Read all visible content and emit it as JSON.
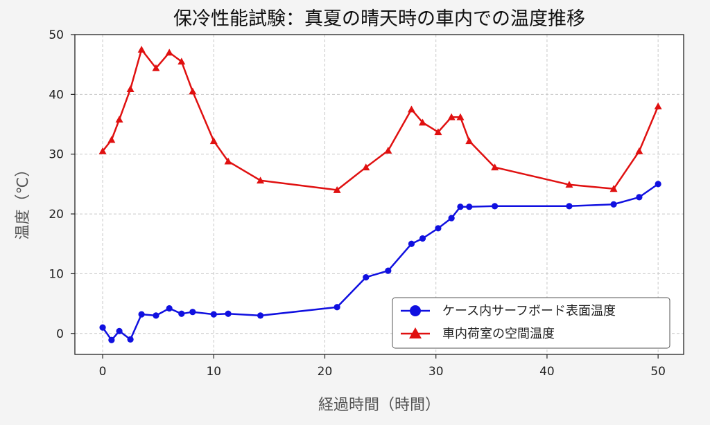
{
  "chart_data": {
    "type": "line",
    "title": "保冷性能試験：真夏の晴天時の車内での温度推移",
    "xlabel": "経過時間（時間）",
    "ylabel": "温度（℃）",
    "xlim": [
      -2.5,
      52.3
    ],
    "ylim": [
      -3.5,
      50
    ],
    "xticks": [
      0,
      10,
      20,
      30,
      40,
      50
    ],
    "yticks": [
      0,
      10,
      20,
      30,
      40,
      50
    ],
    "grid": true,
    "legend_position": "lower-right",
    "series": [
      {
        "name": "ケース内サーフボード表面温度",
        "color": "#1010e0",
        "marker": "circle",
        "x": [
          0,
          0.8,
          1.5,
          2.5,
          3.5,
          4.8,
          6,
          7.1,
          8.1,
          10,
          11.3,
          14.2,
          21.1,
          23.7,
          25.7,
          27.8,
          28.8,
          30.2,
          31.4,
          32.2,
          33,
          35.3,
          42,
          46,
          48.3,
          50
        ],
        "y": [
          1,
          -1.1,
          0.4,
          -1,
          3.2,
          3,
          4.2,
          3.3,
          3.6,
          3.2,
          3.3,
          3,
          4.4,
          9.4,
          10.5,
          15,
          15.9,
          17.6,
          19.3,
          21.2,
          21.2,
          21.3,
          21.3,
          21.6,
          22.8,
          25
        ]
      },
      {
        "name": "車内荷室の空間温度",
        "color": "#e01010",
        "marker": "triangle",
        "x": [
          0,
          0.8,
          1.5,
          2.5,
          3.5,
          4.8,
          6,
          7.1,
          8.1,
          10,
          11.3,
          14.2,
          21.1,
          23.7,
          25.7,
          27.8,
          28.8,
          30.2,
          31.4,
          32.2,
          33,
          35.3,
          42,
          46,
          48.3,
          50
        ],
        "y": [
          30.5,
          32.4,
          35.8,
          40.9,
          47.5,
          44.4,
          47,
          45.5,
          40.5,
          32.2,
          28.8,
          25.6,
          24,
          27.8,
          30.6,
          37.5,
          35.3,
          33.7,
          36.2,
          36.2,
          32.2,
          27.8,
          24.9,
          24.2,
          30.5,
          38
        ]
      }
    ]
  }
}
